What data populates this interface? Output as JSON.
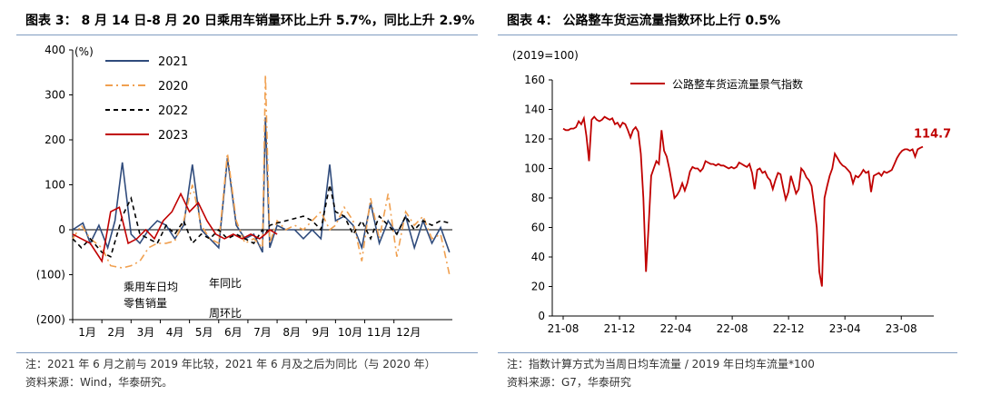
{
  "left": {
    "title": "图表 3： 8 月 14 日-8 月 20 日乘用车销量环比上升 5.7%，同比上升 2.9%",
    "note": "注：2021 年 6 月之前与 2019 年比较，2021 年 6 月及之后为同比（与 2020 年）",
    "source": "资料来源：Wind，华泰研究。",
    "chart_data": {
      "type": "line",
      "ylabel": "(%)",
      "ylim": [
        -200,
        400
      ],
      "yticks": [
        "(200)",
        "(100)",
        "0",
        "100",
        "200",
        "300",
        "400"
      ],
      "xticks": [
        "1月",
        "2月",
        "3月",
        "4月",
        "5月",
        "6月",
        "7月",
        "8月",
        "9月",
        "10月",
        "11月",
        "12月"
      ],
      "annotations": [
        "乘用车日均\n零售销量",
        "年同比",
        "周环比"
      ],
      "series": [
        {
          "name": "2021",
          "color": "#2f4b7c",
          "dash": "solid",
          "points": [
            [
              1,
              0
            ],
            [
              1.35,
              15
            ],
            [
              1.6,
              -30
            ],
            [
              1.9,
              10
            ],
            [
              2.2,
              -40
            ],
            [
              2.45,
              20
            ],
            [
              2.7,
              150
            ],
            [
              3.0,
              -10
            ],
            [
              3.3,
              -30
            ],
            [
              3.6,
              0
            ],
            [
              3.9,
              20
            ],
            [
              4.2,
              10
            ],
            [
              4.5,
              -20
            ],
            [
              4.8,
              10
            ],
            [
              5.1,
              145
            ],
            [
              5.4,
              0
            ],
            [
              5.7,
              -20
            ],
            [
              6.0,
              -40
            ],
            [
              6.3,
              160
            ],
            [
              6.6,
              10
            ],
            [
              6.9,
              -20
            ],
            [
              7.2,
              -10
            ],
            [
              7.5,
              -50
            ],
            [
              7.6,
              250
            ],
            [
              7.75,
              -40
            ],
            [
              8.0,
              10
            ],
            [
              8.3,
              0
            ],
            [
              8.6,
              0
            ],
            [
              8.9,
              -20
            ],
            [
              9.2,
              0
            ],
            [
              9.5,
              -20
            ],
            [
              9.8,
              145
            ],
            [
              10.0,
              20
            ],
            [
              10.3,
              30
            ],
            [
              10.6,
              10
            ],
            [
              10.9,
              -40
            ],
            [
              11.2,
              60
            ],
            [
              11.5,
              -30
            ],
            [
              11.8,
              20
            ],
            [
              12.1,
              -10
            ],
            [
              12.4,
              30
            ],
            [
              12.7,
              -40
            ],
            [
              13.0,
              20
            ],
            [
              13.3,
              -30
            ],
            [
              13.6,
              5
            ],
            [
              13.9,
              -50
            ]
          ]
        },
        {
          "name": "2020",
          "color": "#f0a050",
          "dash": "8,4,2,4",
          "points": [
            [
              1,
              -20
            ],
            [
              1.3,
              10
            ],
            [
              1.6,
              -20
            ],
            [
              2.0,
              -40
            ],
            [
              2.3,
              -80
            ],
            [
              2.7,
              -85
            ],
            [
              3.0,
              -80
            ],
            [
              3.3,
              -70
            ],
            [
              3.6,
              -40
            ],
            [
              3.9,
              -30
            ],
            [
              4.2,
              -30
            ],
            [
              4.5,
              -25
            ],
            [
              4.8,
              20
            ],
            [
              5.1,
              100
            ],
            [
              5.4,
              10
            ],
            [
              5.7,
              -20
            ],
            [
              6.0,
              -30
            ],
            [
              6.3,
              170
            ],
            [
              6.6,
              20
            ],
            [
              6.9,
              -30
            ],
            [
              7.2,
              -20
            ],
            [
              7.5,
              -40
            ],
            [
              7.6,
              345
            ],
            [
              7.75,
              -30
            ],
            [
              8.0,
              20
            ],
            [
              8.3,
              0
            ],
            [
              8.6,
              10
            ],
            [
              8.9,
              0
            ],
            [
              9.2,
              20
            ],
            [
              9.5,
              40
            ],
            [
              9.8,
              0
            ],
            [
              10.0,
              10
            ],
            [
              10.3,
              50
            ],
            [
              10.6,
              20
            ],
            [
              10.9,
              -70
            ],
            [
              11.2,
              70
            ],
            [
              11.5,
              -20
            ],
            [
              11.8,
              80
            ],
            [
              12.1,
              -60
            ],
            [
              12.4,
              40
            ],
            [
              12.7,
              10
            ],
            [
              13.0,
              30
            ],
            [
              13.3,
              -20
            ],
            [
              13.6,
              -10
            ],
            [
              13.9,
              -100
            ]
          ]
        },
        {
          "name": "2022",
          "color": "#000000",
          "dash": "5,4",
          "points": [
            [
              1,
              -20
            ],
            [
              1.3,
              -40
            ],
            [
              1.6,
              -20
            ],
            [
              2.0,
              -50
            ],
            [
              2.3,
              -60
            ],
            [
              2.7,
              30
            ],
            [
              3.0,
              70
            ],
            [
              3.3,
              -10
            ],
            [
              3.6,
              -20
            ],
            [
              3.9,
              -30
            ],
            [
              4.2,
              10
            ],
            [
              4.5,
              -10
            ],
            [
              4.8,
              20
            ],
            [
              5.1,
              -30
            ],
            [
              5.4,
              -10
            ],
            [
              5.7,
              -20
            ],
            [
              6.0,
              0
            ],
            [
              6.3,
              -20
            ],
            [
              6.6,
              -10
            ],
            [
              6.9,
              -20
            ],
            [
              7.2,
              -30
            ],
            [
              7.5,
              0
            ],
            [
              7.6,
              -10
            ],
            [
              7.75,
              10
            ],
            [
              8.0,
              15
            ],
            [
              8.3,
              20
            ],
            [
              8.6,
              25
            ],
            [
              8.9,
              30
            ],
            [
              9.2,
              20
            ],
            [
              9.5,
              0
            ],
            [
              9.8,
              100
            ],
            [
              10.0,
              40
            ],
            [
              10.3,
              30
            ],
            [
              10.6,
              -10
            ],
            [
              10.9,
              20
            ],
            [
              11.2,
              -20
            ],
            [
              11.5,
              30
            ],
            [
              11.8,
              10
            ],
            [
              12.1,
              -10
            ],
            [
              12.4,
              30
            ],
            [
              12.7,
              0
            ],
            [
              13.0,
              20
            ],
            [
              13.3,
              10
            ],
            [
              13.6,
              20
            ],
            [
              13.9,
              15
            ]
          ]
        },
        {
          "name": "2023",
          "color": "#c00000",
          "dash": "solid",
          "points": [
            [
              1,
              -10
            ],
            [
              1.3,
              -20
            ],
            [
              1.6,
              -30
            ],
            [
              2.0,
              -70
            ],
            [
              2.3,
              40
            ],
            [
              2.6,
              50
            ],
            [
              2.9,
              -30
            ],
            [
              3.2,
              -20
            ],
            [
              3.5,
              0
            ],
            [
              3.8,
              -20
            ],
            [
              4.1,
              20
            ],
            [
              4.4,
              40
            ],
            [
              4.7,
              80
            ],
            [
              5.0,
              40
            ],
            [
              5.3,
              60
            ],
            [
              5.6,
              20
            ],
            [
              5.9,
              -10
            ],
            [
              6.2,
              -20
            ],
            [
              6.5,
              -10
            ],
            [
              6.8,
              -20
            ],
            [
              7.1,
              -10
            ],
            [
              7.4,
              -20
            ],
            [
              7.6,
              -10
            ],
            [
              7.75,
              0
            ],
            [
              8.0,
              -10
            ]
          ]
        }
      ]
    }
  },
  "right": {
    "title": "图表 4： 公路整车货运流量指数环比上行 0.5%",
    "note": "注：指数计算方式为当周日均车流量 / 2019 年日均车流量*100",
    "source": "资料来源：G7，华泰研究",
    "chart_data": {
      "type": "line",
      "ylabel": "(2019=100)",
      "ylim": [
        0,
        160
      ],
      "yticks": [
        "0",
        "20",
        "40",
        "60",
        "80",
        "100",
        "120",
        "140",
        "160"
      ],
      "xticks": [
        "21-08",
        "21-12",
        "22-04",
        "22-08",
        "22-12",
        "23-04",
        "23-08"
      ],
      "last_label": "114.7",
      "series": [
        {
          "name": "公路整车货运流量景气指数",
          "color": "#c00000",
          "values": [
            127,
            126,
            126,
            127,
            127,
            128,
            132,
            130,
            134,
            122,
            105,
            133,
            135,
            133,
            132,
            133,
            135,
            134,
            133,
            134,
            130,
            131,
            128,
            131,
            130,
            126,
            121,
            126,
            128,
            125,
            110,
            80,
            30,
            60,
            95,
            100,
            105,
            103,
            126,
            112,
            108,
            100,
            90,
            80,
            82,
            85,
            90,
            85,
            90,
            98,
            101,
            100,
            100,
            98,
            100,
            105,
            104,
            103,
            103,
            102,
            103,
            102,
            102,
            101,
            100,
            101,
            100,
            101,
            104,
            103,
            102,
            101,
            103,
            97,
            86,
            99,
            100,
            97,
            98,
            94,
            92,
            86,
            92,
            97,
            96,
            87,
            79,
            84,
            95,
            89,
            83,
            86,
            100,
            98,
            94,
            92,
            88,
            75,
            60,
            30,
            20,
            80,
            88,
            95,
            100,
            110,
            107,
            104,
            102,
            101,
            99,
            97,
            90,
            95,
            94,
            96,
            99,
            97,
            98,
            84,
            95,
            96,
            97,
            95,
            98,
            97,
            98,
            99,
            103,
            107,
            110,
            112,
            113,
            113,
            112,
            113,
            108,
            113,
            114,
            114.7
          ]
        }
      ]
    }
  }
}
